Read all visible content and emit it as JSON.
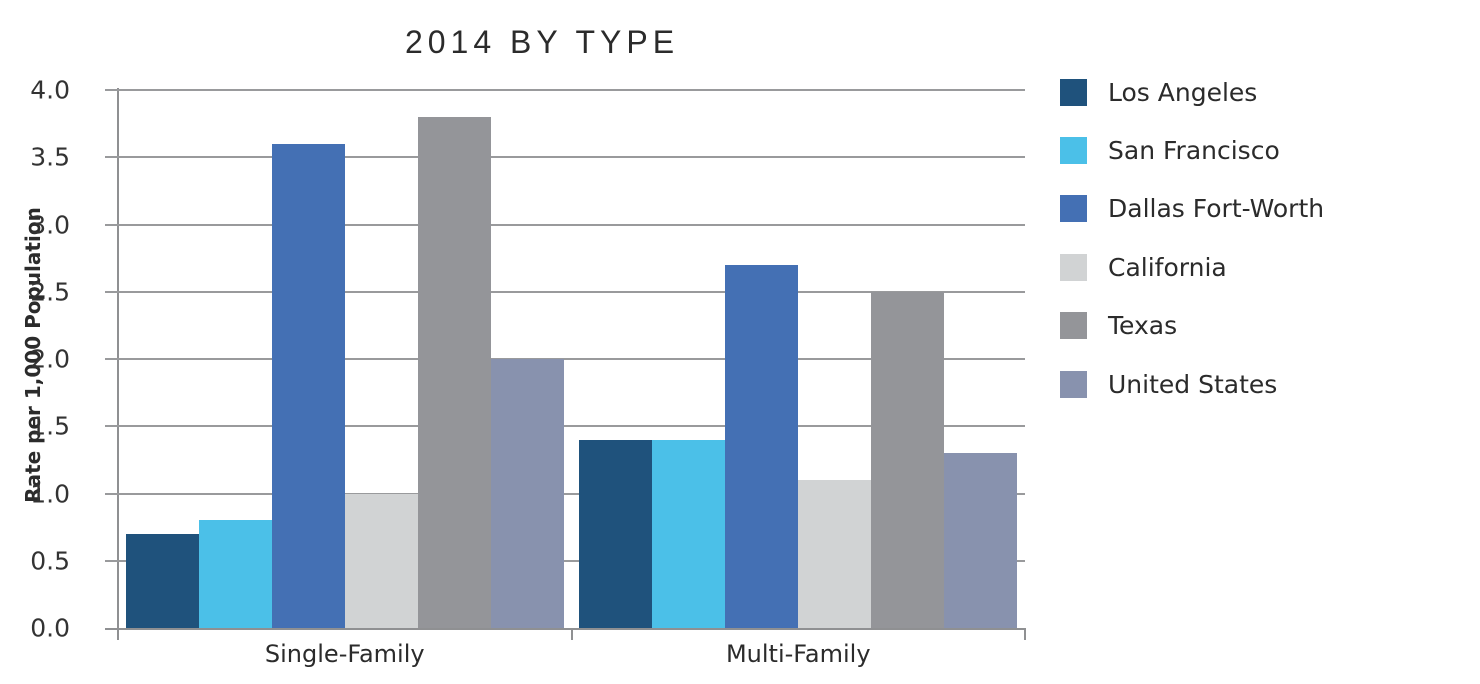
{
  "chart_data": {
    "type": "bar",
    "title": "2014 BY TYPE",
    "xlabel": "",
    "ylabel": "Rate per 1,000 Population",
    "categories": [
      "Single-Family",
      "Multi-Family"
    ],
    "series": [
      {
        "name": "Los Angeles",
        "color": "#1F527C",
        "values": [
          0.7,
          1.4
        ]
      },
      {
        "name": "San Francisco",
        "color": "#4BC0E8",
        "values": [
          0.8,
          1.4
        ]
      },
      {
        "name": "Dallas Fort-Worth",
        "color": "#4470B4",
        "values": [
          3.6,
          2.7
        ]
      },
      {
        "name": "California",
        "color": "#D1D3D4",
        "values": [
          1.0,
          1.1
        ]
      },
      {
        "name": "Texas",
        "color": "#949599",
        "values": [
          3.8,
          2.5
        ]
      },
      {
        "name": "United States",
        "color": "#8892AE",
        "values": [
          2.0,
          1.3
        ]
      }
    ],
    "ylim": [
      0.0,
      4.0
    ],
    "ytick_step": 0.5,
    "ytick_labels": [
      "0.0",
      "0.5",
      "1.0",
      "1.5",
      "2.0",
      "2.5",
      "3.0",
      "3.5",
      "4.0"
    ],
    "grid": true,
    "legend_position": "right",
    "colors": {
      "gridline": "#999a9c",
      "axis": "#8f9092",
      "title_text": "#2b2b2b",
      "tick_text": "#333333",
      "background": "#ffffff"
    }
  }
}
